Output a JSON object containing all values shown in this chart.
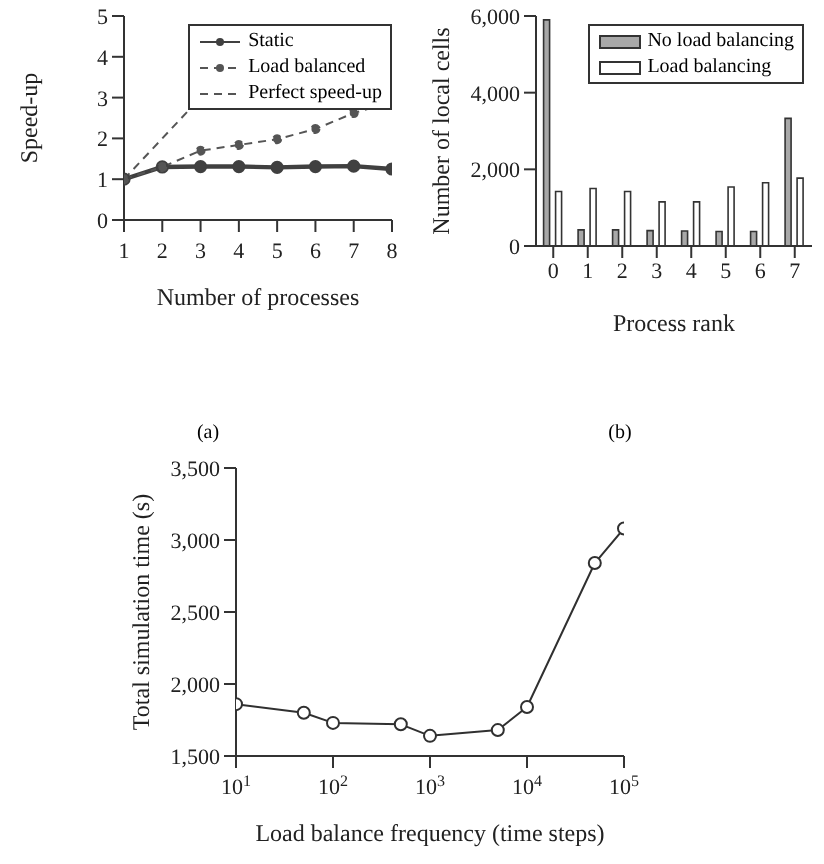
{
  "chart_data": [
    {
      "type": "line",
      "xlabel": "Number of processes",
      "ylabel": "Speed-up",
      "x": [
        1,
        2,
        3,
        4,
        5,
        6,
        7,
        8
      ],
      "xlim": [
        1,
        8
      ],
      "xticks": [
        1,
        2,
        3,
        4,
        5,
        6,
        7,
        8
      ],
      "ylim": [
        0,
        5
      ],
      "yticks": [
        0,
        1,
        2,
        3,
        4,
        5
      ],
      "grid": false,
      "legend": "top right",
      "annotations": [
        "(a)"
      ],
      "series": [
        {
          "name": "Static",
          "color": "#404040",
          "values": [
            1,
            1.3,
            1.31,
            1.31,
            1.29,
            1.31,
            1.32,
            1.25
          ],
          "marker": "circle",
          "line_style": "solid"
        },
        {
          "name": "Load balanced",
          "color": "#555555",
          "values": [
            1,
            1.3,
            1.7,
            1.84,
            1.98,
            2.23,
            2.62,
            2.9
          ],
          "marker": "circle",
          "line_style": "dashed"
        },
        {
          "name": "Perfect speed-up",
          "color": "#555555",
          "values": [
            1,
            2,
            3,
            null,
            null,
            null,
            null,
            null
          ],
          "marker": "none",
          "line_style": "dashed"
        }
      ]
    },
    {
      "type": "bar",
      "xlabel": "Process rank",
      "ylabel": "Number of local cells",
      "categories": [
        "0",
        "1",
        "2",
        "3",
        "4",
        "5",
        "6",
        "7"
      ],
      "ylim": [
        0,
        6000
      ],
      "yticks": [
        0,
        {
          "value": 2000,
          "label": "2,000"
        },
        {
          "value": 4000,
          "label": "4,000"
        },
        {
          "value": 6000,
          "label": "6,000"
        }
      ],
      "grid": false,
      "legend": "top right",
      "annotations": [
        "(b)"
      ],
      "series": [
        {
          "name": "No load balancing",
          "color": "#a8a8a8",
          "values": [
            5900,
            420,
            420,
            400,
            390,
            380,
            380,
            3330
          ]
        },
        {
          "name": "Load balancing",
          "color": "#ffffff",
          "values": [
            1420,
            1500,
            1420,
            1150,
            1150,
            1540,
            1650,
            1770
          ]
        }
      ]
    },
    {
      "type": "line",
      "xlabel": "Load balance frequency (time steps)",
      "ylabel": "Total simulation time (s)",
      "log": "x",
      "x": [
        10,
        50,
        100,
        500,
        1000,
        5000,
        10000,
        50000,
        100000
      ],
      "xlim": [
        10,
        100000
      ],
      "xticks": [
        {
          "value": 10,
          "label": "10$^{1}$"
        },
        {
          "value": 100,
          "label": "10$^{2}$"
        },
        {
          "value": 1000,
          "label": "10$^{3}$"
        },
        {
          "value": 10000,
          "label": "10$^{4}$"
        },
        {
          "value": 100000,
          "label": "10$^{5}$"
        }
      ],
      "ylim": [
        1500,
        3500
      ],
      "yticks": [
        {
          "value": 1500,
          "label": "1,500"
        },
        {
          "value": 2000,
          "label": "2,000"
        },
        {
          "value": 2500,
          "label": "2,500"
        },
        {
          "value": 3000,
          "label": "3,000"
        },
        {
          "value": 3500,
          "label": "3,500"
        }
      ],
      "grid": false,
      "marker": "circle",
      "line_style": "solid",
      "series": [
        {
          "color": "#303030",
          "values": [
            1860,
            1800,
            1730,
            1720,
            1640,
            1680,
            1840,
            2840,
            3080
          ]
        }
      ]
    }
  ]
}
